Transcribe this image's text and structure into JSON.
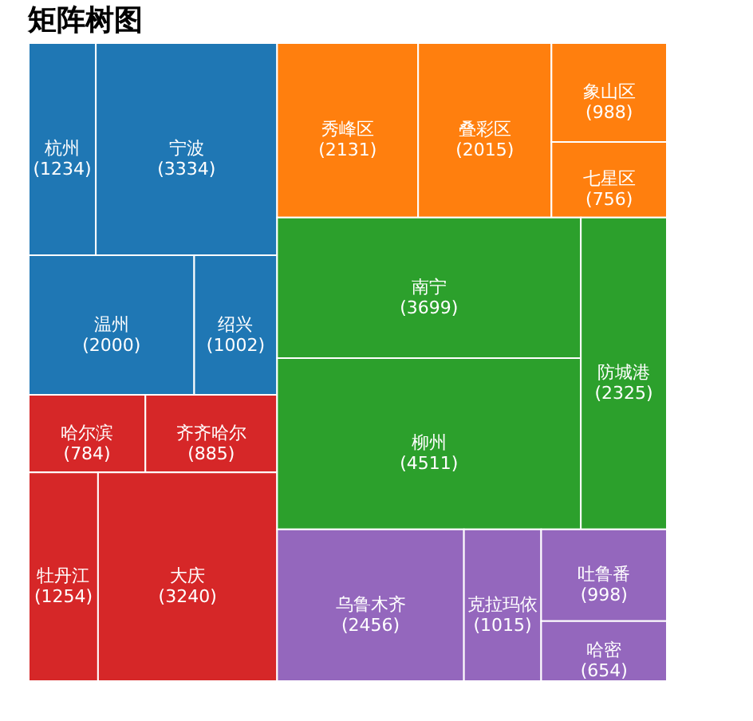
{
  "chart_data": {
    "type": "other",
    "title": "矩阵树图",
    "categories": [
      "杭州",
      "宁波",
      "温州",
      "绍兴",
      "哈尔滨",
      "齐齐哈尔",
      "牡丹江",
      "大庆",
      "秀峰区",
      "叠彩区",
      "象山区",
      "七星区",
      "南宁",
      "柳州",
      "防城港",
      "乌鲁木齐",
      "克拉玛依",
      "吐鲁番",
      "哈密"
    ],
    "values": [
      1234,
      3334,
      2000,
      1002,
      784,
      885,
      1254,
      3240,
      2131,
      2015,
      988,
      756,
      3699,
      4511,
      2325,
      2456,
      1015,
      998,
      654
    ],
    "value_labels": [
      "(1234)",
      "(3334)",
      "(2000)",
      "(1002)",
      "(784)",
      "(885)",
      "(1254)",
      "(3240)",
      "(2131)",
      "(2015)",
      "(988)",
      "(756)",
      "(3699)",
      "(4511)",
      "(2325)",
      "(2456)",
      "(1015)",
      "(998)",
      "(654)"
    ],
    "colors": [
      "#1f77b4",
      "#1f77b4",
      "#1f77b4",
      "#1f77b4",
      "#d62728",
      "#d62728",
      "#d62728",
      "#d62728",
      "#ff7f0e",
      "#ff7f0e",
      "#ff7f0e",
      "#ff7f0e",
      "#2ca02c",
      "#2ca02c",
      "#2ca02c",
      "#9467bd",
      "#9467bd",
      "#9467bd",
      "#9467bd"
    ]
  }
}
